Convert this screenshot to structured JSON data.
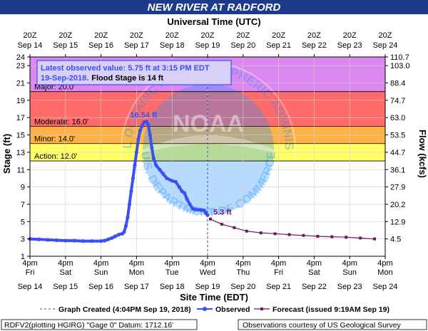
{
  "chart_data": {
    "type": "line",
    "title": "NEW RIVER AT RADFORD",
    "top_axis_title": "Universal Time (UTC)",
    "xlabel": "Site Time (EDT)",
    "ylabel": "Stage (ft)",
    "y2label": "Flow (kcfs)",
    "ylim": [
      1,
      24
    ],
    "y_ticks": [
      1,
      3,
      5,
      7,
      9,
      11,
      13,
      15,
      17,
      19,
      21,
      23,
      24
    ],
    "y2_ticks": [
      {
        "stage": 24,
        "label": "110.7"
      },
      {
        "stage": 23,
        "label": "103.0"
      },
      {
        "stage": 21,
        "label": "88.4"
      },
      {
        "stage": 19,
        "label": "74.7"
      },
      {
        "stage": 17,
        "label": "63.0"
      },
      {
        "stage": 15,
        "label": "53.5"
      },
      {
        "stage": 13,
        "label": "44.7"
      },
      {
        "stage": 11,
        "label": "36.1"
      },
      {
        "stage": 9,
        "label": "27.9"
      },
      {
        "stage": 7,
        "label": "20.2"
      },
      {
        "stage": 5,
        "label": "12.9"
      },
      {
        "stage": 3,
        "label": "4.5"
      }
    ],
    "x_range_days": [
      0,
      10
    ],
    "bottom_ticks": [
      {
        "time": "4pm",
        "day": "Fri",
        "date": "Sep 14"
      },
      {
        "time": "4pm",
        "day": "Sat",
        "date": "Sep 15"
      },
      {
        "time": "4pm",
        "day": "Sun",
        "date": "Sep 16"
      },
      {
        "time": "4pm",
        "day": "Mon",
        "date": "Sep 17"
      },
      {
        "time": "4pm",
        "day": "Tue",
        "date": "Sep 18"
      },
      {
        "time": "4pm",
        "day": "Wed",
        "date": "Sep 19"
      },
      {
        "time": "4pm",
        "day": "Thu",
        "date": "Sep 20"
      },
      {
        "time": "4pm",
        "day": "Fri",
        "date": "Sep 21"
      },
      {
        "time": "4pm",
        "day": "Sat",
        "date": "Sep 22"
      },
      {
        "time": "4pm",
        "day": "Sun",
        "date": "Sep 23"
      },
      {
        "time": "4pm",
        "day": "Mon",
        "date": "Sep 24"
      }
    ],
    "top_ticks": [
      {
        "time": "20Z",
        "date": "Sep 14"
      },
      {
        "time": "20Z",
        "date": "Sep 15"
      },
      {
        "time": "20Z",
        "date": "Sep 16"
      },
      {
        "time": "20Z",
        "date": "Sep 17"
      },
      {
        "time": "20Z",
        "date": "Sep 18"
      },
      {
        "time": "20Z",
        "date": "Sep 19"
      },
      {
        "time": "20Z",
        "date": "Sep 20"
      },
      {
        "time": "20Z",
        "date": "Sep 21"
      },
      {
        "time": "20Z",
        "date": "Sep 22"
      },
      {
        "time": "20Z",
        "date": "Sep 23"
      },
      {
        "time": "20Z",
        "date": "Sep 24"
      }
    ],
    "flood_zones": [
      {
        "name": "Action",
        "label": "Action: 12.0'",
        "from": 12,
        "to": 14,
        "color": "#ffff66"
      },
      {
        "name": "Minor",
        "label": "Minor: 14.0'",
        "from": 14,
        "to": 16,
        "color": "#ffb347"
      },
      {
        "name": "Moderate",
        "label": "Moderate: 16.0'",
        "from": 16,
        "to": 20,
        "color": "#ff6a6a"
      },
      {
        "name": "Major",
        "label": "Major: 20.0'",
        "from": 20,
        "to": 24,
        "color": "#dd88f0"
      }
    ],
    "graph_created_day": 5.0,
    "peak": {
      "label": "16.54 ft",
      "x": 3.2,
      "y": 16.54
    },
    "latest_label": {
      "label": "5.3 ft",
      "x": 5.08,
      "y": 5.3
    },
    "series": [
      {
        "name": "Observed",
        "color": "#3b4ff5",
        "points": [
          [
            0.0,
            3.0
          ],
          [
            0.25,
            2.95
          ],
          [
            0.5,
            2.9
          ],
          [
            0.75,
            2.85
          ],
          [
            1.0,
            2.8
          ],
          [
            1.25,
            2.8
          ],
          [
            1.5,
            2.75
          ],
          [
            1.75,
            2.75
          ],
          [
            2.0,
            2.75
          ],
          [
            2.1,
            2.8
          ],
          [
            2.2,
            2.95
          ],
          [
            2.3,
            3.1
          ],
          [
            2.4,
            3.3
          ],
          [
            2.5,
            3.5
          ],
          [
            2.6,
            3.6
          ],
          [
            2.65,
            3.8
          ],
          [
            2.7,
            4.5
          ],
          [
            2.75,
            5.5
          ],
          [
            2.8,
            7.0
          ],
          [
            2.85,
            8.5
          ],
          [
            2.9,
            10.0
          ],
          [
            2.95,
            11.5
          ],
          [
            3.0,
            13.0
          ],
          [
            3.05,
            14.5
          ],
          [
            3.1,
            15.5
          ],
          [
            3.15,
            16.0
          ],
          [
            3.22,
            16.5
          ],
          [
            3.28,
            16.54
          ],
          [
            3.33,
            16.2
          ],
          [
            3.38,
            15.0
          ],
          [
            3.43,
            13.5
          ],
          [
            3.48,
            12.3
          ],
          [
            3.55,
            11.5
          ],
          [
            3.65,
            11.0
          ],
          [
            3.75,
            10.5
          ],
          [
            3.85,
            10.0
          ],
          [
            4.0,
            9.7
          ],
          [
            4.1,
            9.6
          ],
          [
            4.2,
            9.0
          ],
          [
            4.28,
            8.5
          ],
          [
            4.35,
            8.3
          ],
          [
            4.42,
            7.6
          ],
          [
            4.5,
            7.0
          ],
          [
            4.58,
            6.5
          ],
          [
            4.65,
            6.4
          ],
          [
            4.8,
            6.35
          ],
          [
            4.9,
            6.3
          ],
          [
            4.95,
            6.0
          ],
          [
            5.0,
            5.75
          ]
        ]
      },
      {
        "name": "Forecast (issued 9:19AM Sep 19)",
        "color": "#6b1a5a",
        "points": [
          [
            5.08,
            5.3
          ],
          [
            5.4,
            4.7
          ],
          [
            5.75,
            4.3
          ],
          [
            6.1,
            3.9
          ],
          [
            6.5,
            3.7
          ],
          [
            6.9,
            3.6
          ],
          [
            7.3,
            3.5
          ],
          [
            7.7,
            3.4
          ],
          [
            8.1,
            3.3
          ],
          [
            8.5,
            3.25
          ],
          [
            8.9,
            3.2
          ],
          [
            9.3,
            3.1
          ],
          [
            9.7,
            3.0
          ]
        ]
      }
    ],
    "info_box": {
      "line1": "Latest observed value: 5.75 ft at 3:15 PM EDT",
      "line2_blue": "19-Sep-2018.",
      "line2_black": "Flood Stage is 14 ft"
    },
    "legend": {
      "graph_created": "Graph Created (4:04PM Sep 19, 2018)",
      "observed": "Observed",
      "forecast": "Forecast (issued 9:19AM Sep 19)"
    },
    "footer": {
      "left": "RDFV2(plotting HGIRG) \"Gage 0\" Datum: 1712.16'",
      "right": "Observations courtesy of US Geological Survey"
    },
    "watermark": {
      "arc_top": "NATIONAL OCEANIC AND ATMOSPHERIC ADMINISTRATION",
      "arc_bottom": "U.S. DEPARTMENT OF COMMERCE",
      "center": "NOAA"
    },
    "colors": {
      "title_bar": "#1e3a8a",
      "observed": "#3b4ff5",
      "forecast": "#6b1a5a",
      "plot_background": "#ffffff",
      "watermark_blue": "#1e90ff"
    }
  }
}
